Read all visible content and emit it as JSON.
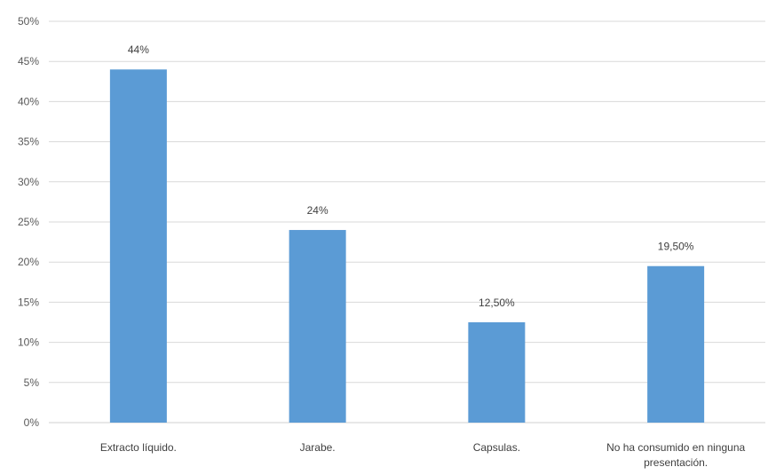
{
  "chart_data": {
    "type": "bar",
    "categories": [
      "Extracto líquido.",
      "Jarabe.",
      "Capsulas.",
      "No ha consumido en ninguna presentación."
    ],
    "category_lines": [
      [
        "Extracto líquido."
      ],
      [
        "Jarabe."
      ],
      [
        "Capsulas."
      ],
      [
        "No ha consumido en ninguna",
        "presentación."
      ]
    ],
    "values": [
      44,
      24,
      12.5,
      19.5
    ],
    "data_labels": [
      "44%",
      "24%",
      "12,50%",
      "19,50%"
    ],
    "ylim": [
      0,
      50
    ],
    "yticks": [
      "0%",
      "5%",
      "10%",
      "15%",
      "20%",
      "25%",
      "30%",
      "35%",
      "40%",
      "45%",
      "50%"
    ],
    "grid": true,
    "legend": "none",
    "bar_color": "#5B9BD5",
    "grid_color": "#D9D9D9",
    "title": "",
    "xlabel": "",
    "ylabel": ""
  }
}
